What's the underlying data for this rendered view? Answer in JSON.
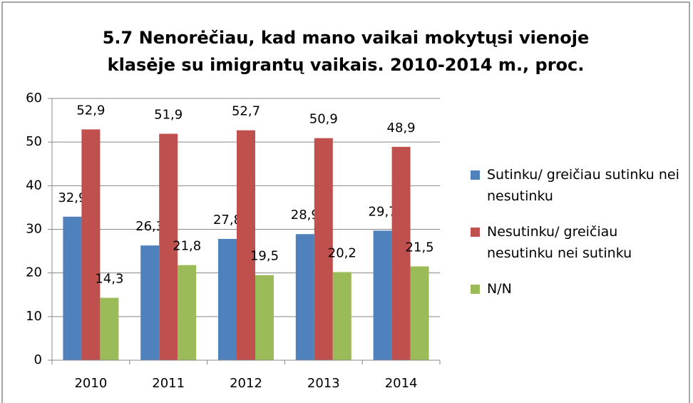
{
  "chart_data": {
    "type": "bar",
    "title": "5.7 Nenorėčiau, kad mano vaikai mokytųsi vienoje klasėje su imigrantų vaikais. 2010-2014 m., proc.",
    "categories": [
      "2010",
      "2011",
      "2012",
      "2013",
      "2014"
    ],
    "series": [
      {
        "name": "Sutinku/ greičiau sutinku nei nesutinku",
        "color": "#4f81bd",
        "values": [
          32.9,
          26.3,
          27.8,
          28.9,
          29.7
        ],
        "value_labels": [
          "32,9",
          "26,3",
          "27,8",
          "28,9",
          "29,7"
        ]
      },
      {
        "name": "Nesutinku/ greičiau nesutinku nei sutinku",
        "color": "#c0504d",
        "values": [
          52.9,
          51.9,
          52.7,
          50.9,
          48.9
        ],
        "value_labels": [
          "52,9",
          "51,9",
          "52,7",
          "50,9",
          "48,9"
        ]
      },
      {
        "name": "N/N",
        "color": "#9bbb59",
        "values": [
          14.3,
          21.8,
          19.5,
          20.2,
          21.5
        ],
        "value_labels": [
          "14,3",
          "21,8",
          "19,5",
          "20,2",
          "21,5"
        ]
      }
    ],
    "ylim": [
      0,
      60
    ],
    "yticks": [
      0,
      10,
      20,
      30,
      40,
      50,
      60
    ],
    "grid": true,
    "legend": "right"
  }
}
